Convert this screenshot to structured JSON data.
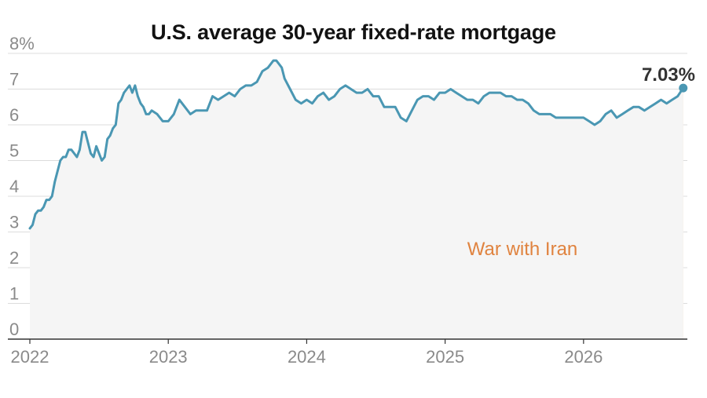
{
  "chart_data": {
    "type": "line",
    "title": "U.S. average 30-year fixed-rate mortgage",
    "xlabel": "",
    "ylabel": "",
    "ylim": [
      0,
      8
    ],
    "y_ticks": [
      "0",
      "1",
      "2",
      "3",
      "4",
      "5",
      "6",
      "7",
      "8%"
    ],
    "x_ticks": [
      "2022",
      "2023",
      "2024",
      "2025",
      "2026"
    ],
    "xlim": [
      2022.0,
      2026.75
    ],
    "grid": true,
    "colors": {
      "line": "#4a97b3",
      "area": "#f5f5f5",
      "band": "#f8d5bc",
      "band_text": "#e0833f"
    },
    "highlight_band": {
      "label": "War with Iran",
      "start": 2026.17,
      "end": 2026.72
    },
    "end_label": "7.03%",
    "series": [
      {
        "x": [
          2022.0,
          2022.02,
          2022.04,
          2022.06,
          2022.08,
          2022.1,
          2022.12,
          2022.14,
          2022.16,
          2022.18,
          2022.2,
          2022.22,
          2022.24,
          2022.26,
          2022.28,
          2022.3,
          2022.32,
          2022.34,
          2022.36,
          2022.38,
          2022.4,
          2022.42,
          2022.44,
          2022.46,
          2022.48,
          2022.5,
          2022.52,
          2022.54,
          2022.56,
          2022.58,
          2022.6,
          2022.62,
          2022.64,
          2022.66,
          2022.68,
          2022.7,
          2022.72,
          2022.74,
          2022.76,
          2022.78,
          2022.8,
          2022.82,
          2022.84,
          2022.86,
          2022.88,
          2022.92,
          2022.96,
          2023.0,
          2023.04,
          2023.08,
          2023.12,
          2023.16,
          2023.2,
          2023.24,
          2023.28,
          2023.32,
          2023.36,
          2023.4,
          2023.44,
          2023.48,
          2023.52,
          2023.56,
          2023.6,
          2023.64,
          2023.68,
          2023.72,
          2023.76,
          2023.78,
          2023.8,
          2023.82,
          2023.84,
          2023.88,
          2023.92,
          2023.96,
          2024.0,
          2024.04,
          2024.08,
          2024.12,
          2024.16,
          2024.2,
          2024.24,
          2024.28,
          2024.32,
          2024.36,
          2024.4,
          2024.44,
          2024.48,
          2024.52,
          2024.56,
          2024.6,
          2024.64,
          2024.68,
          2024.72,
          2024.76,
          2024.8,
          2024.84,
          2024.88,
          2024.92,
          2024.96,
          2025.0,
          2025.04,
          2025.08,
          2025.12,
          2025.16,
          2025.2,
          2025.24,
          2025.28,
          2025.32,
          2025.36,
          2025.4,
          2025.44,
          2025.48,
          2025.52,
          2025.56,
          2025.6,
          2025.64,
          2025.68,
          2025.72,
          2025.76,
          2025.8,
          2025.84,
          2025.88,
          2025.92,
          2025.96,
          2026.0,
          2026.04,
          2026.08,
          2026.12,
          2026.16,
          2026.2,
          2026.24,
          2026.28,
          2026.32,
          2026.36,
          2026.4,
          2026.44,
          2026.48,
          2026.52,
          2026.56,
          2026.6,
          2026.64,
          2026.68,
          2026.72
        ],
        "values": [
          3.1,
          3.2,
          3.5,
          3.6,
          3.6,
          3.7,
          3.9,
          3.9,
          4.0,
          4.4,
          4.7,
          5.0,
          5.1,
          5.1,
          5.3,
          5.3,
          5.2,
          5.1,
          5.3,
          5.8,
          5.8,
          5.5,
          5.2,
          5.1,
          5.4,
          5.2,
          5.0,
          5.1,
          5.6,
          5.7,
          5.9,
          6.0,
          6.6,
          6.7,
          6.9,
          7.0,
          7.1,
          6.9,
          7.1,
          6.8,
          6.6,
          6.5,
          6.3,
          6.3,
          6.4,
          6.3,
          6.1,
          6.1,
          6.3,
          6.7,
          6.5,
          6.3,
          6.4,
          6.4,
          6.4,
          6.8,
          6.7,
          6.8,
          6.9,
          6.8,
          7.0,
          7.1,
          7.1,
          7.2,
          7.5,
          7.6,
          7.8,
          7.8,
          7.7,
          7.6,
          7.3,
          7.0,
          6.7,
          6.6,
          6.7,
          6.6,
          6.8,
          6.9,
          6.7,
          6.8,
          7.0,
          7.1,
          7.0,
          6.9,
          6.9,
          7.0,
          6.8,
          6.8,
          6.5,
          6.5,
          6.5,
          6.2,
          6.1,
          6.4,
          6.7,
          6.8,
          6.8,
          6.7,
          6.9,
          6.9,
          7.0,
          6.9,
          6.8,
          6.7,
          6.7,
          6.6,
          6.8,
          6.9,
          6.9,
          6.9,
          6.8,
          6.8,
          6.7,
          6.7,
          6.6,
          6.4,
          6.3,
          6.3,
          6.3,
          6.2,
          6.2,
          6.2,
          6.2,
          6.2,
          6.2,
          6.1,
          6.0,
          6.1,
          6.3,
          6.4,
          6.2,
          6.3,
          6.4,
          6.5,
          6.5,
          6.4,
          6.5,
          6.6,
          6.7,
          6.6,
          6.7,
          6.8,
          7.03
        ]
      }
    ]
  }
}
